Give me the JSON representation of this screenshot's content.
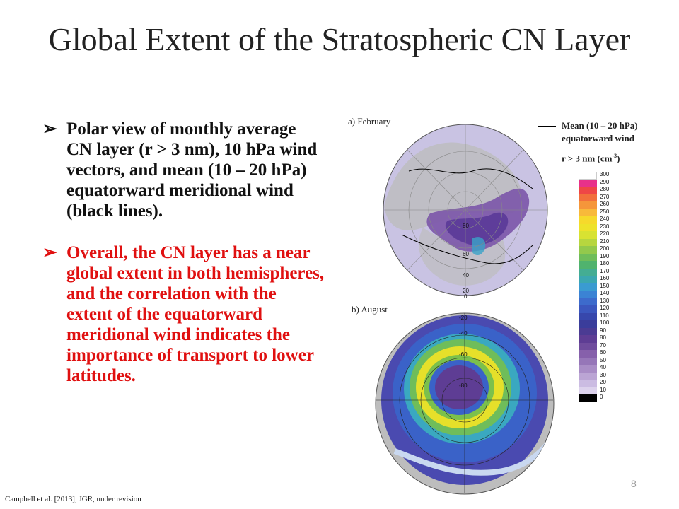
{
  "slide": {
    "title": "Global Extent of the Stratospheric CN Layer",
    "bullets": [
      {
        "text": "Polar view of monthly average CN layer (r > 3 nm), 10 hPa wind vectors, and mean (10 – 20 hPa) equatorward meridional wind (black lines).",
        "color": "#111111"
      },
      {
        "text": "Overall, the CN layer has a near global extent in both hemispheres, and the correlation with the extent of the equatorward meridional wind indicates the importance of transport to lower latitudes.",
        "color": "#e01010"
      }
    ],
    "bullet_marker": "➢",
    "footer": "Campbell et al. [2013], JGR, under revision",
    "page_number": "8"
  },
  "figure": {
    "panel_a_label": "a)  February",
    "panel_b_label": "b)  August",
    "panel_a_lat_labels": [
      "80",
      "60",
      "40",
      "20",
      "0"
    ],
    "panel_b_lat_labels": [
      "-20",
      "-40",
      "-60",
      "-80"
    ],
    "legend": {
      "line_label_1": "Mean  (10 – 20 hPa)",
      "line_label_2": "equatorward wind",
      "cbar_title_prefix": "r > 3 nm (cm",
      "cbar_title_sup": "-3",
      "cbar_title_suffix": ")"
    },
    "colorbar": {
      "ticks": [
        "300",
        "290",
        "280",
        "270",
        "260",
        "250",
        "240",
        "230",
        "220",
        "210",
        "200",
        "190",
        "180",
        "170",
        "160",
        "150",
        "140",
        "130",
        "120",
        "110",
        "100",
        "90",
        "80",
        "70",
        "60",
        "50",
        "40",
        "30",
        "20",
        "10",
        "0"
      ],
      "colors": [
        "#ffffff",
        "#e8318a",
        "#ef4646",
        "#f26f3c",
        "#f5963a",
        "#f8b93a",
        "#f6d92b",
        "#eee22a",
        "#d8e232",
        "#b7d63f",
        "#93c94c",
        "#6fbd5a",
        "#50b36e",
        "#44ad93",
        "#3ba7b0",
        "#3a9bd1",
        "#3b83d4",
        "#3d6bcc",
        "#3b57be",
        "#3747ac",
        "#3a3d9b",
        "#4b3b93",
        "#5e3d94",
        "#6f4c9d",
        "#8660ab",
        "#9676b8",
        "#a98dc6",
        "#bba5d4",
        "#cbbce2",
        "#dcd2ec",
        "#000000"
      ]
    }
  }
}
